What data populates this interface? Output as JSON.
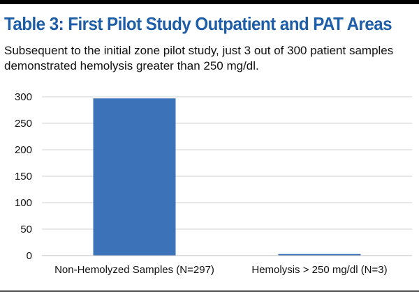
{
  "header": {
    "title": "Table 3: First Pilot Study Outpatient and PAT Areas",
    "subtitle": "Subsequent to the initial zone pilot study, just 3 out of 300 patient samples demonstrated hemolysis greater than 250 mg/dl."
  },
  "colors": {
    "title": "#1e5ea8",
    "bar": "#3c72b8",
    "grid": "#d0d0d0",
    "axis": "#bfbfbf"
  },
  "chart_data": {
    "type": "bar",
    "title": "",
    "xlabel": "",
    "ylabel": "",
    "categories": [
      "Non-Hemolyzed Samples (N=297)",
      "Hemolysis > 250 mg/dl (N=3)"
    ],
    "values": [
      297,
      3
    ],
    "ylim": [
      0,
      300
    ],
    "yticks": [
      0,
      50,
      100,
      150,
      200,
      250,
      300
    ],
    "grid": true,
    "legend": "none"
  }
}
